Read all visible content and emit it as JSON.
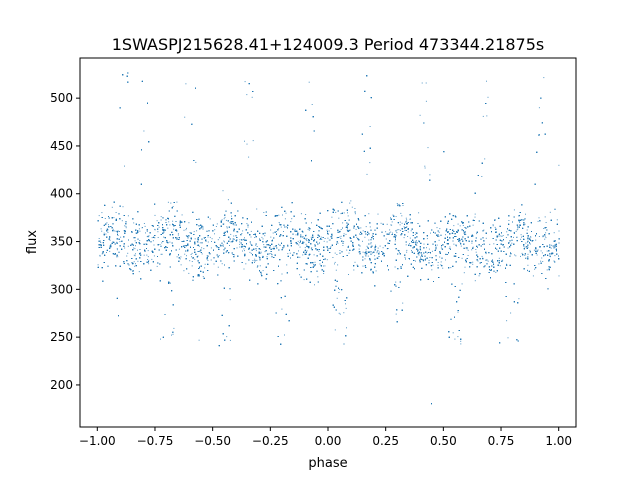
{
  "chart_data": {
    "type": "scatter",
    "title": "1SWASPJ215628.41+124009.3 Period 473344.21875s",
    "xlabel": "phase",
    "ylabel": "flux",
    "xlim": [
      -1.075,
      1.075
    ],
    "ylim": [
      156,
      542
    ],
    "xticks": [
      -1.0,
      -0.75,
      -0.5,
      -0.25,
      0.0,
      0.25,
      0.5,
      0.75,
      1.0
    ],
    "xtick_labels": [
      "−1.00",
      "−0.75",
      "−0.50",
      "−0.25",
      "0.00",
      "0.25",
      "0.50",
      "0.75",
      "1.00"
    ],
    "yticks": [
      200,
      250,
      300,
      350,
      400,
      450,
      500
    ],
    "ytick_labels": [
      "200",
      "250",
      "300",
      "350",
      "400",
      "450",
      "500"
    ],
    "grid": false,
    "legend": "none",
    "marker_color": "#1f77b4",
    "x_range": [
      -1.0,
      1.0
    ],
    "y_range": [
      173,
      527
    ],
    "y_median": 350,
    "core_band": [
      300,
      400
    ],
    "dip_phases": [
      -0.7,
      -0.45,
      -0.2,
      0.05,
      0.3,
      0.55,
      0.8
    ],
    "dip_min_flux": 240,
    "spike_phases": [
      -0.88,
      -0.79,
      -0.6,
      -0.35,
      -0.08,
      0.17,
      0.42,
      0.67,
      0.92
    ],
    "spike_max_flux": 527
  }
}
